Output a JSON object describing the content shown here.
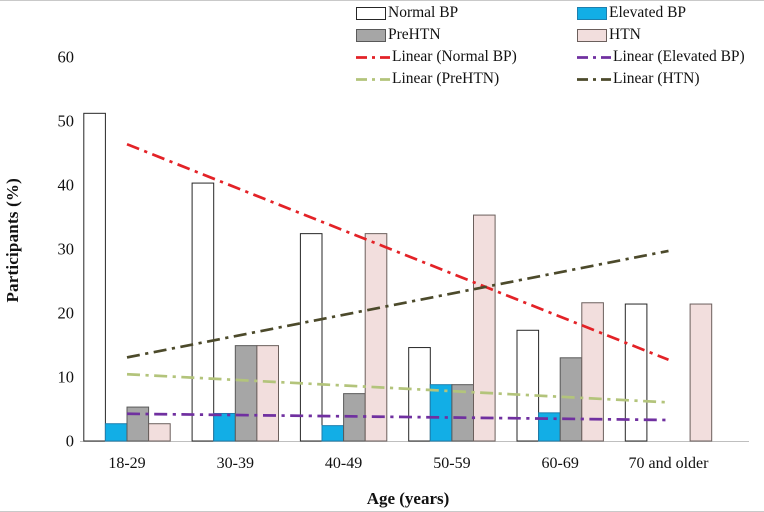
{
  "chart_data": {
    "type": "bar",
    "title": "",
    "xlabel": "Age (years)",
    "ylabel": "Participants (%)",
    "categories": [
      "18-29",
      "30-39",
      "40-49",
      "50-59",
      "60-69",
      "70 and older"
    ],
    "series": [
      {
        "name": "Normal BP",
        "values": [
          51.2,
          40.3,
          32.4,
          14.6,
          17.3,
          21.4
        ],
        "fill": "#ffffff",
        "border": "#262626"
      },
      {
        "name": "Elevated BP",
        "values": [
          2.7,
          4.3,
          2.4,
          8.8,
          4.4,
          0
        ],
        "fill": "#12aee6",
        "border": "#1d7fae"
      },
      {
        "name": "PreHTN",
        "values": [
          5.3,
          14.9,
          7.4,
          8.8,
          13.0,
          0
        ],
        "fill": "#a6a6a6",
        "border": "#595959"
      },
      {
        "name": "HTN",
        "values": [
          2.7,
          14.9,
          32.4,
          35.3,
          21.6,
          21.4
        ],
        "fill": "#f2dedd",
        "border": "#6b5f5c"
      }
    ],
    "trendlines": [
      {
        "name": "Linear (Normal BP)",
        "series": "Normal BP",
        "color": "#e32227"
      },
      {
        "name": "Linear (Elevated BP)",
        "series": "Elevated BP",
        "color": "#7030a0"
      },
      {
        "name": "Linear (PreHTN)",
        "series": "PreHTN",
        "color": "#b3c47b"
      },
      {
        "name": "Linear (HTN)",
        "series": "HTN",
        "color": "#4c4a2b"
      }
    ],
    "ylim": [
      0,
      60
    ],
    "yticks": [
      0,
      10,
      20,
      30,
      40,
      50,
      60
    ],
    "grid": false,
    "legend_position": "top",
    "axis_color": "#bfbfbf"
  }
}
